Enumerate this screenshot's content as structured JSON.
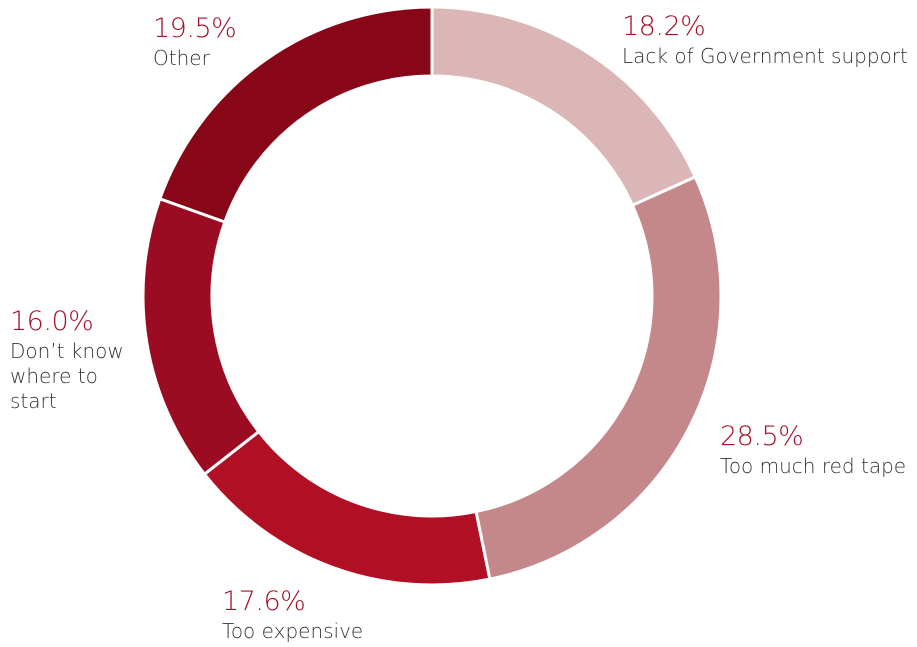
{
  "chart_data": {
    "type": "donut",
    "categories": [
      "Lack of Government support",
      "Too much red tape",
      "Too expensive",
      "Don’t know where to start",
      "Other"
    ],
    "values": [
      18.2,
      28.5,
      17.6,
      16.0,
      19.5
    ],
    "value_labels": [
      "18.2%",
      "28.5%",
      "17.6%",
      "16.0%",
      "19.5%"
    ],
    "colors": [
      "#dbb6b6",
      "#c4878a",
      "#b00f24",
      "#9b0b22",
      "#870719"
    ]
  }
}
